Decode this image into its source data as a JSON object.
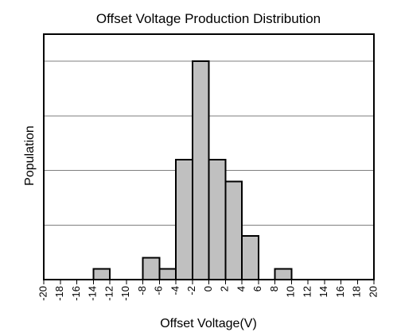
{
  "chart_data": {
    "type": "bar",
    "title": "Offset Voltage Production Distribution",
    "xlabel": "Offset Voltage(V)",
    "ylabel": "Population",
    "xlim": [
      -20,
      20
    ],
    "ylim": [
      0,
      20
    ],
    "x_ticks": [
      "-20",
      "-18",
      "-16",
      "-14",
      "-12",
      "-10",
      "-8",
      "-6",
      "-4",
      "-2",
      "0",
      "2",
      "4",
      "6",
      "8",
      "10",
      "12",
      "14",
      "16",
      "18",
      "20"
    ],
    "bin_width": 2,
    "bins": [
      {
        "start": -14,
        "end": -12,
        "value": 1
      },
      {
        "start": -8,
        "end": -6,
        "value": 2
      },
      {
        "start": -6,
        "end": -4,
        "value": 1
      },
      {
        "start": -4,
        "end": -2,
        "value": 11
      },
      {
        "start": -2,
        "end": 0,
        "value": 20
      },
      {
        "start": 0,
        "end": 2,
        "value": 11
      },
      {
        "start": 2,
        "end": 4,
        "value": 9
      },
      {
        "start": 4,
        "end": 6,
        "value": 4
      },
      {
        "start": 8,
        "end": 10,
        "value": 1
      }
    ],
    "grid": true,
    "legend": "none",
    "colors": {
      "bar_fill": "#c0c0c0",
      "bar_stroke": "#000000",
      "grid": "#7f7f7f",
      "axis": "#000000"
    }
  }
}
